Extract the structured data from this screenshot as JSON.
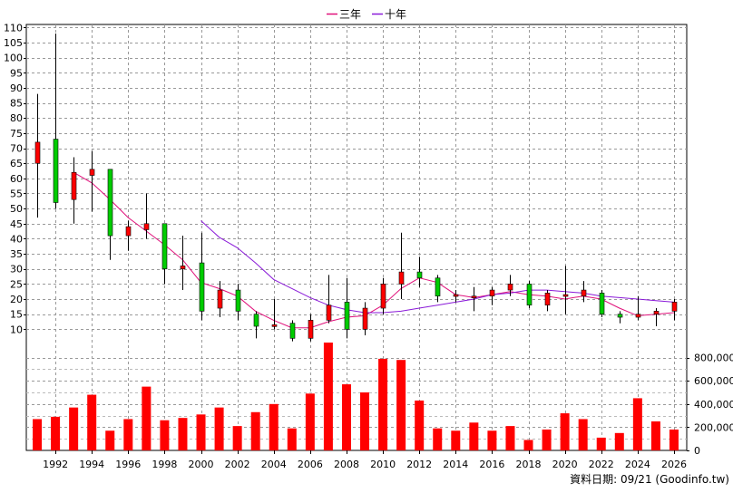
{
  "chart_data": {
    "type": "candlestick",
    "legend": {
      "position": "top-center",
      "items": [
        {
          "name": "三年",
          "color": "#e0107a"
        },
        {
          "name": "十年",
          "color": "#8a1ad8"
        }
      ]
    },
    "price_axis": {
      "range": [
        5,
        111
      ],
      "ticks": [
        10,
        15,
        20,
        25,
        30,
        35,
        40,
        45,
        50,
        55,
        60,
        65,
        70,
        75,
        80,
        85,
        90,
        95,
        100,
        105,
        110
      ],
      "side": "left"
    },
    "volume_axis": {
      "range": [
        0,
        930000
      ],
      "ticks": [
        0,
        200000,
        400000,
        600000,
        800000
      ],
      "tick_labels": [
        "0",
        "200,000",
        "400,000",
        "600,000",
        "800,000"
      ],
      "side": "right"
    },
    "x_axis": {
      "range": [
        1990.4,
        2026.7
      ],
      "ticks": [
        1992,
        1994,
        1996,
        1998,
        2000,
        2002,
        2004,
        2006,
        2008,
        2010,
        2012,
        2014,
        2016,
        2018,
        2020,
        2022,
        2024,
        2026
      ],
      "grid": true
    },
    "colors": {
      "up": "#ff0000",
      "down": "#00cc00",
      "volume": "#ff0000",
      "wick": "#000000"
    },
    "candles": [
      {
        "year": 1991,
        "open": 65,
        "close": 72,
        "high": 88,
        "low": 47
      },
      {
        "year": 1992,
        "open": 73,
        "close": 52,
        "high": 108,
        "low": 50
      },
      {
        "year": 1993,
        "open": 53,
        "close": 62,
        "high": 67,
        "low": 45
      },
      {
        "year": 1994,
        "open": 61,
        "close": 63,
        "high": 69,
        "low": 49
      },
      {
        "year": 1995,
        "open": 63,
        "close": 41,
        "high": 63,
        "low": 33
      },
      {
        "year": 1996,
        "open": 41,
        "close": 44,
        "high": 46,
        "low": 36
      },
      {
        "year": 1997,
        "open": 43,
        "close": 45,
        "high": 55,
        "low": 40
      },
      {
        "year": 1998,
        "open": 45,
        "close": 30,
        "high": 45,
        "low": 25
      },
      {
        "year": 1999,
        "open": 30,
        "close": 31,
        "high": 41,
        "low": 23
      },
      {
        "year": 2000,
        "open": 32,
        "close": 16,
        "high": 42,
        "low": 13
      },
      {
        "year": 2001,
        "open": 17,
        "close": 23,
        "high": 26,
        "low": 14
      },
      {
        "year": 2002,
        "open": 23,
        "close": 16,
        "high": 25,
        "low": 13
      },
      {
        "year": 2003,
        "open": 15,
        "close": 11,
        "high": 16,
        "low": 7
      },
      {
        "year": 2004,
        "open": 11,
        "close": 11.5,
        "high": 20,
        "low": 10
      },
      {
        "year": 2005,
        "open": 12,
        "close": 7,
        "high": 13,
        "low": 6
      },
      {
        "year": 2006,
        "open": 7,
        "close": 13,
        "high": 15,
        "low": 6
      },
      {
        "year": 2007,
        "open": 13,
        "close": 18,
        "high": 28,
        "low": 12
      },
      {
        "year": 2008,
        "open": 19,
        "close": 10,
        "high": 27,
        "low": 7
      },
      {
        "year": 2009,
        "open": 10,
        "close": 17,
        "high": 19,
        "low": 8
      },
      {
        "year": 2010,
        "open": 17,
        "close": 25,
        "high": 27,
        "low": 15
      },
      {
        "year": 2011,
        "open": 25,
        "close": 29,
        "high": 42,
        "low": 20
      },
      {
        "year": 2012,
        "open": 29,
        "close": 27,
        "high": 34,
        "low": 24
      },
      {
        "year": 2013,
        "open": 27,
        "close": 21,
        "high": 28,
        "low": 19
      },
      {
        "year": 2014,
        "open": 21,
        "close": 21.5,
        "high": 23,
        "low": 19
      },
      {
        "year": 2015,
        "open": 20.5,
        "close": 21,
        "high": 24,
        "low": 16
      },
      {
        "year": 2016,
        "open": 21,
        "close": 23,
        "high": 24,
        "low": 18
      },
      {
        "year": 2017,
        "open": 23,
        "close": 25,
        "high": 28,
        "low": 21
      },
      {
        "year": 2018,
        "open": 25,
        "close": 18,
        "high": 26,
        "low": 17
      },
      {
        "year": 2019,
        "open": 18,
        "close": 22,
        "high": 23,
        "low": 16
      },
      {
        "year": 2020,
        "open": 21,
        "close": 21.5,
        "high": 31,
        "low": 15
      },
      {
        "year": 2021,
        "open": 21,
        "close": 23,
        "high": 26,
        "low": 19
      },
      {
        "year": 2022,
        "open": 22,
        "close": 15,
        "high": 23,
        "low": 14
      },
      {
        "year": 2023,
        "open": 15,
        "close": 14,
        "high": 16,
        "low": 12
      },
      {
        "year": 2024,
        "open": 14,
        "close": 15,
        "high": 21,
        "low": 13
      },
      {
        "year": 2025,
        "open": 15,
        "close": 16,
        "high": 17,
        "low": 11
      },
      {
        "year": 2026,
        "open": 16,
        "close": 19,
        "high": 20,
        "low": 13
      }
    ],
    "volume": [
      {
        "year": 1991,
        "value": 270000
      },
      {
        "year": 1992,
        "value": 290000
      },
      {
        "year": 1993,
        "value": 370000
      },
      {
        "year": 1994,
        "value": 480000
      },
      {
        "year": 1995,
        "value": 170000
      },
      {
        "year": 1996,
        "value": 270000
      },
      {
        "year": 1997,
        "value": 550000
      },
      {
        "year": 1998,
        "value": 260000
      },
      {
        "year": 1999,
        "value": 280000
      },
      {
        "year": 2000,
        "value": 310000
      },
      {
        "year": 2001,
        "value": 370000
      },
      {
        "year": 2002,
        "value": 210000
      },
      {
        "year": 2003,
        "value": 330000
      },
      {
        "year": 2004,
        "value": 400000
      },
      {
        "year": 2005,
        "value": 190000
      },
      {
        "year": 2006,
        "value": 490000
      },
      {
        "year": 2007,
        "value": 930000
      },
      {
        "year": 2008,
        "value": 570000
      },
      {
        "year": 2009,
        "value": 500000
      },
      {
        "year": 2010,
        "value": 790000
      },
      {
        "year": 2011,
        "value": 780000
      },
      {
        "year": 2012,
        "value": 430000
      },
      {
        "year": 2013,
        "value": 190000
      },
      {
        "year": 2014,
        "value": 170000
      },
      {
        "year": 2015,
        "value": 240000
      },
      {
        "year": 2016,
        "value": 170000
      },
      {
        "year": 2017,
        "value": 210000
      },
      {
        "year": 2018,
        "value": 90000
      },
      {
        "year": 2019,
        "value": 180000
      },
      {
        "year": 2020,
        "value": 320000
      },
      {
        "year": 2021,
        "value": 270000
      },
      {
        "year": 2022,
        "value": 110000
      },
      {
        "year": 2023,
        "value": 150000
      },
      {
        "year": 2024,
        "value": 450000
      },
      {
        "year": 2025,
        "value": 250000
      },
      {
        "year": 2026,
        "value": 180000
      }
    ],
    "series": [
      {
        "name": "三年",
        "color": "#e0107a",
        "points": [
          [
            1993,
            62
          ],
          [
            1994,
            58.5
          ],
          [
            1995,
            53
          ],
          [
            1996,
            47
          ],
          [
            1997,
            42.5
          ],
          [
            1998,
            38
          ],
          [
            1999,
            33
          ],
          [
            2000,
            25.5
          ],
          [
            2001,
            23.5
          ],
          [
            2002,
            21
          ],
          [
            2003,
            16
          ],
          [
            2004,
            13
          ],
          [
            2005,
            10.5
          ],
          [
            2006,
            10.5
          ],
          [
            2007,
            12.5
          ],
          [
            2008,
            14
          ],
          [
            2009,
            14.5
          ],
          [
            2010,
            18
          ],
          [
            2011,
            23.5
          ],
          [
            2012,
            27
          ],
          [
            2013,
            25.5
          ],
          [
            2014,
            21.5
          ],
          [
            2015,
            20.5
          ],
          [
            2016,
            21.5
          ],
          [
            2017,
            22.5
          ],
          [
            2018,
            21.5
          ],
          [
            2019,
            21
          ],
          [
            2020,
            20
          ],
          [
            2021,
            21
          ],
          [
            2022,
            20
          ],
          [
            2023,
            17
          ],
          [
            2024,
            14.5
          ],
          [
            2025,
            15
          ],
          [
            2026,
            15.5
          ]
        ]
      },
      {
        "name": "十年",
        "color": "#8a1ad8",
        "points": [
          [
            2000,
            46
          ],
          [
            2001,
            40.5
          ],
          [
            2002,
            37
          ],
          [
            2003,
            32
          ],
          [
            2004,
            26.5
          ],
          [
            2005,
            23.5
          ],
          [
            2006,
            20.5
          ],
          [
            2007,
            18
          ],
          [
            2008,
            16.5
          ],
          [
            2009,
            15.5
          ],
          [
            2010,
            15.5
          ],
          [
            2011,
            16
          ],
          [
            2012,
            17
          ],
          [
            2013,
            18
          ],
          [
            2014,
            19
          ],
          [
            2015,
            20
          ],
          [
            2016,
            21.5
          ],
          [
            2017,
            22
          ],
          [
            2018,
            23
          ],
          [
            2019,
            23
          ],
          [
            2020,
            22.5
          ],
          [
            2021,
            22
          ],
          [
            2022,
            21
          ],
          [
            2023,
            20.5
          ],
          [
            2024,
            20
          ],
          [
            2025,
            19.5
          ],
          [
            2026,
            19
          ]
        ]
      }
    ],
    "footer": "資料日期: 09/21 (Goodinfo.tw)"
  }
}
